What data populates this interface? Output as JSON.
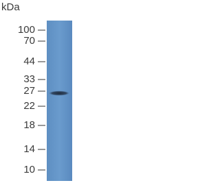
{
  "unit": "kDa",
  "markers": [
    "100",
    "70",
    "44",
    "33",
    "27",
    "22",
    "18",
    "14",
    "10"
  ]
}
